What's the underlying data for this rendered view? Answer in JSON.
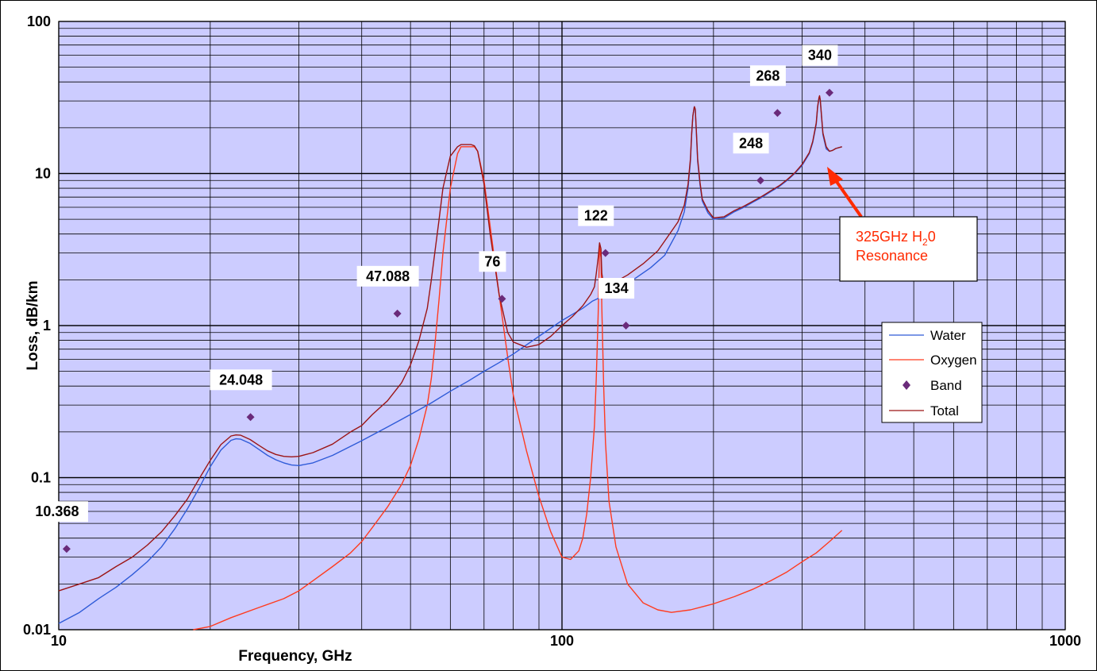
{
  "chart_data": {
    "type": "line",
    "xlabel": "Frequency, GHz",
    "ylabel": "Loss, dB/km",
    "x_scale": "log",
    "y_scale": "log",
    "xlim": [
      10,
      1000
    ],
    "ylim": [
      0.01,
      100
    ],
    "x_ticks": [
      "10",
      "100",
      "1000"
    ],
    "y_ticks": [
      "0.01",
      "0.1",
      "1",
      "10",
      "100"
    ],
    "grid": true,
    "plot_background": "#ccccff",
    "legend_position": "right",
    "legend": [
      {
        "name": "Water",
        "color": "#2f5bd8",
        "kind": "line"
      },
      {
        "name": "Oxygen",
        "color": "#ff3b1f",
        "kind": "line"
      },
      {
        "name": "Band",
        "color": "#6a2a7a",
        "kind": "marker"
      },
      {
        "name": "Total",
        "color": "#9c1515",
        "kind": "line"
      }
    ],
    "series": [
      {
        "name": "Water",
        "color": "#2f5bd8",
        "x": [
          10,
          11,
          12,
          13,
          14,
          15,
          16,
          17,
          18,
          19,
          20,
          21,
          22,
          22.5,
          23,
          24,
          25,
          26,
          27,
          28,
          29,
          30,
          32,
          35,
          40,
          45,
          50,
          55,
          60,
          65,
          70,
          75,
          80,
          90,
          100,
          110,
          115,
          120,
          122,
          125,
          130,
          140,
          150,
          160,
          170,
          175,
          178,
          180,
          181,
          182,
          183,
          183.3,
          184,
          185,
          186,
          188,
          190,
          195,
          200,
          210,
          220,
          230,
          240,
          250,
          260,
          270,
          280,
          290,
          300,
          310,
          315,
          320,
          322,
          324,
          325,
          326,
          328,
          330,
          335,
          340,
          345,
          350,
          360
        ],
        "y": [
          0.011,
          0.013,
          0.016,
          0.019,
          0.023,
          0.028,
          0.035,
          0.046,
          0.062,
          0.085,
          0.118,
          0.152,
          0.176,
          0.18,
          0.179,
          0.168,
          0.153,
          0.14,
          0.131,
          0.125,
          0.121,
          0.12,
          0.125,
          0.14,
          0.175,
          0.215,
          0.26,
          0.31,
          0.37,
          0.43,
          0.5,
          0.57,
          0.65,
          0.85,
          1.08,
          1.3,
          1.45,
          1.55,
          1.6,
          1.7,
          1.8,
          2.05,
          2.4,
          2.9,
          4.2,
          5.6,
          8.0,
          12.0,
          18.0,
          24.0,
          27.0,
          27.5,
          26.0,
          18.0,
          12.0,
          8.5,
          6.6,
          5.5,
          5.0,
          5.1,
          5.6,
          6.0,
          6.5,
          7.0,
          7.6,
          8.2,
          9.0,
          10.0,
          11.3,
          13.5,
          16.0,
          21.0,
          27.0,
          31.0,
          32.0,
          30.0,
          23.0,
          18.0,
          14.5,
          14.0,
          14.2,
          14.6,
          15.0
        ]
      },
      {
        "name": "Oxygen",
        "color": "#ff3b1f",
        "x": [
          18.5,
          20,
          22,
          25,
          28,
          30,
          32,
          35,
          38,
          40,
          42,
          45,
          48,
          50,
          52,
          54,
          55,
          56,
          57,
          58,
          60,
          62,
          63,
          64,
          65,
          66,
          67,
          68,
          70,
          72,
          75,
          78,
          80,
          85,
          90,
          95,
          100,
          104,
          108,
          110,
          112,
          114,
          116,
          117,
          118,
          118.75,
          119.5,
          120,
          121,
          122,
          124,
          128,
          135,
          145,
          155,
          165,
          180,
          200,
          220,
          240,
          260,
          280,
          300,
          320,
          340,
          360
        ],
        "y": [
          0.01,
          0.0105,
          0.012,
          0.014,
          0.016,
          0.018,
          0.021,
          0.026,
          0.032,
          0.038,
          0.047,
          0.064,
          0.09,
          0.12,
          0.18,
          0.3,
          0.45,
          0.8,
          1.5,
          3.0,
          8.0,
          13.5,
          15.0,
          15.0,
          15.0,
          15.0,
          15.0,
          14.0,
          9.0,
          4.5,
          1.6,
          0.62,
          0.35,
          0.15,
          0.075,
          0.044,
          0.03,
          0.029,
          0.033,
          0.04,
          0.058,
          0.1,
          0.22,
          0.45,
          1.2,
          3.3,
          2.8,
          1.3,
          0.4,
          0.17,
          0.07,
          0.035,
          0.02,
          0.015,
          0.0135,
          0.013,
          0.0135,
          0.0148,
          0.0165,
          0.0185,
          0.021,
          0.024,
          0.028,
          0.032,
          0.038,
          0.045
        ]
      },
      {
        "name": "Total",
        "color": "#9c1515",
        "x": [
          10,
          11,
          12,
          13,
          14,
          15,
          16,
          17,
          18,
          19,
          20,
          21,
          22,
          22.5,
          23,
          24,
          25,
          26,
          27,
          28,
          29,
          30,
          32,
          35,
          38,
          40,
          42,
          45,
          48,
          50,
          52,
          54,
          55,
          56,
          57,
          58,
          60,
          62,
          63,
          64,
          65,
          66,
          67,
          68,
          70,
          72,
          75,
          78,
          80,
          85,
          90,
          95,
          100,
          105,
          110,
          114,
          116,
          117,
          118,
          118.75,
          119.5,
          120,
          121,
          122,
          124,
          128,
          135,
          145,
          155,
          160,
          170,
          175,
          178,
          180,
          181,
          182,
          183,
          183.3,
          184,
          185,
          186,
          188,
          190,
          195,
          200,
          210,
          220,
          230,
          240,
          250,
          260,
          270,
          280,
          290,
          300,
          310,
          315,
          320,
          322,
          324,
          325,
          326,
          328,
          330,
          335,
          340,
          345,
          350,
          360
        ],
        "y": [
          0.018,
          0.02,
          0.022,
          0.026,
          0.03,
          0.036,
          0.044,
          0.056,
          0.072,
          0.098,
          0.13,
          0.165,
          0.188,
          0.191,
          0.19,
          0.178,
          0.163,
          0.15,
          0.142,
          0.138,
          0.137,
          0.138,
          0.146,
          0.166,
          0.2,
          0.22,
          0.26,
          0.32,
          0.42,
          0.55,
          0.8,
          1.3,
          2.0,
          3.2,
          5.0,
          8.0,
          13.0,
          15.0,
          15.5,
          15.5,
          15.5,
          15.5,
          15.2,
          14.0,
          8.5,
          4.0,
          1.6,
          0.9,
          0.78,
          0.72,
          0.75,
          0.85,
          1.0,
          1.15,
          1.35,
          1.6,
          1.8,
          2.2,
          2.8,
          3.5,
          3.2,
          2.2,
          1.85,
          1.75,
          1.8,
          1.95,
          2.15,
          2.55,
          3.1,
          3.6,
          4.8,
          6.2,
          8.5,
          12.5,
          18.5,
          24.0,
          27.0,
          27.5,
          26.5,
          18.5,
          12.5,
          8.8,
          6.8,
          5.7,
          5.1,
          5.2,
          5.7,
          6.1,
          6.6,
          7.1,
          7.7,
          8.3,
          9.1,
          10.1,
          11.5,
          13.7,
          16.3,
          21.5,
          27.5,
          31.5,
          32.5,
          30.5,
          23.5,
          18.5,
          15.0,
          14.0,
          14.2,
          14.6,
          15.0
        ]
      },
      {
        "name": "Band",
        "color": "#6a2a7a",
        "marker": "diamond",
        "points": [
          {
            "label": "10.368",
            "x": 10.368,
            "y": 0.034
          },
          {
            "label": "24.048",
            "x": 24.048,
            "y": 0.25
          },
          {
            "label": "47.088",
            "x": 47.088,
            "y": 1.2
          },
          {
            "label": "76",
            "x": 76,
            "y": 1.5
          },
          {
            "label": "122",
            "x": 122,
            "y": 3.0
          },
          {
            "label": "134",
            "x": 134,
            "y": 1.0
          },
          {
            "label": "248",
            "x": 248,
            "y": 9.0
          },
          {
            "label": "268",
            "x": 268,
            "y": 25.0
          },
          {
            "label": "340",
            "x": 340,
            "y": 34.0
          }
        ]
      }
    ],
    "annotations": [
      {
        "text_line1": "325GHz H",
        "subscript": "2",
        "text_line1_end": "0",
        "text_line2": "Resonance",
        "arrow_to": {
          "x": 325,
          "y": 12
        },
        "color": "#ff2a00"
      }
    ]
  }
}
